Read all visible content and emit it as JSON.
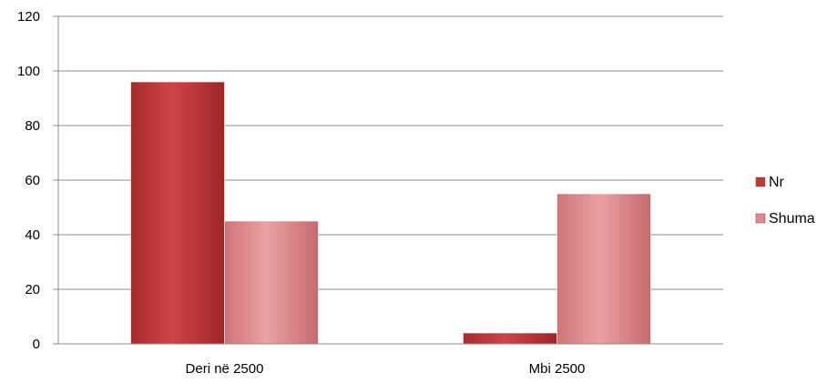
{
  "chart_data": {
    "type": "bar",
    "title": "",
    "xlabel": "",
    "ylabel": "",
    "categories": [
      "Deri në 2500",
      "Mbi 2500"
    ],
    "series": [
      {
        "name": "Nr",
        "values": [
          96,
          4
        ],
        "color": "#c0393b"
      },
      {
        "name": "Shuma",
        "values": [
          45,
          55
        ],
        "color": "#e08a8c"
      }
    ],
    "ylim": [
      0,
      120
    ],
    "yticks": [
      0,
      20,
      40,
      60,
      80,
      100,
      120
    ],
    "ytick_labels": [
      "0",
      "20",
      "40",
      "60",
      "80",
      "100",
      "120"
    ],
    "grid": true,
    "legend_position": "right"
  }
}
